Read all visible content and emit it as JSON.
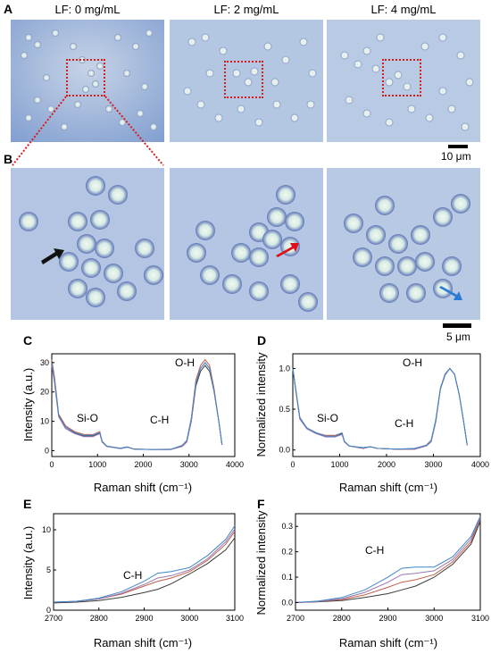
{
  "panels": {
    "A": "A",
    "B": "B",
    "C": "C",
    "D": "D",
    "E": "E",
    "F": "F"
  },
  "conditions": [
    "LF: 0 mg/mL",
    "LF: 2 mg/mL",
    "LF: 4 mg/mL"
  ],
  "scalebars": {
    "a": "10 μm",
    "b": "5 μm"
  },
  "arrow_colors": {
    "cond0": "#111111",
    "cond1": "#e0101a",
    "cond2": "#2a7bd1"
  },
  "series_colors": [
    "#3a3a3a",
    "#c0604a",
    "#9a77b0",
    "#3f86c8"
  ],
  "chart_data": [
    {
      "id": "C",
      "type": "line",
      "xlabel": "Raman shift (cm⁻¹)",
      "ylabel": "Intensity (a.u.)",
      "xlim": [
        0,
        4000
      ],
      "ylim": [
        -2,
        33
      ],
      "xticks": [
        0,
        1000,
        2000,
        3000,
        4000
      ],
      "yticks": [
        0,
        10,
        20,
        30
      ],
      "annotations": [
        "Si-O",
        "C-H",
        "O-H"
      ],
      "series": [
        {
          "x": [
            0,
            60,
            150,
            300,
            500,
            700,
            900,
            1050,
            1100,
            1200,
            1500,
            1650,
            1800,
            2200,
            2600,
            2850,
            2950,
            3050,
            3150,
            3250,
            3350,
            3450,
            3550,
            3650,
            3720
          ],
          "y": [
            30,
            24,
            12,
            8,
            6,
            5,
            5,
            6,
            3,
            1.5,
            0.7,
            1.2,
            0.5,
            0.4,
            0.4,
            1.5,
            3,
            10,
            22,
            27,
            29,
            27,
            20,
            10,
            2
          ]
        },
        {
          "x": [
            0,
            60,
            150,
            300,
            500,
            700,
            900,
            1050,
            1100,
            1200,
            1500,
            1650,
            1800,
            2200,
            2600,
            2850,
            2950,
            3050,
            3150,
            3250,
            3350,
            3450,
            3550,
            3650,
            3720
          ],
          "y": [
            31,
            25,
            12.5,
            8.5,
            6.5,
            5.5,
            5.5,
            6.5,
            3.2,
            1.6,
            0.8,
            1.3,
            0.5,
            0.4,
            0.4,
            1.6,
            3.2,
            11,
            24,
            29,
            31,
            29,
            21,
            10,
            2
          ]
        },
        {
          "x": [
            0,
            60,
            150,
            300,
            500,
            700,
            900,
            1050,
            1100,
            1200,
            1500,
            1650,
            1800,
            2200,
            2600,
            2850,
            2950,
            3050,
            3150,
            3250,
            3350,
            3450,
            3550,
            3650,
            3720
          ],
          "y": [
            29,
            23,
            11.5,
            7.5,
            5.8,
            4.8,
            4.8,
            5.8,
            2.9,
            1.4,
            0.7,
            1.2,
            0.5,
            0.4,
            0.4,
            1.4,
            2.9,
            10,
            23,
            28,
            30,
            28,
            20,
            10,
            2
          ]
        },
        {
          "x": [
            0,
            60,
            150,
            300,
            500,
            700,
            900,
            1050,
            1100,
            1200,
            1500,
            1650,
            1800,
            2200,
            2600,
            2850,
            2950,
            3050,
            3150,
            3250,
            3350,
            3450,
            3550,
            3650,
            3720
          ],
          "y": [
            30,
            24,
            12,
            8,
            6.2,
            5.2,
            5.2,
            6.2,
            3.1,
            1.5,
            0.8,
            1.3,
            0.5,
            0.4,
            0.5,
            1.8,
            3.5,
            11,
            23,
            28,
            30,
            28,
            20,
            10,
            2
          ]
        }
      ]
    },
    {
      "id": "D",
      "type": "line",
      "xlabel": "Raman shift (cm⁻¹)",
      "ylabel": "Normalized intensity",
      "xlim": [
        0,
        4000
      ],
      "ylim": [
        -0.08,
        1.18
      ],
      "xticks": [
        0,
        1000,
        2000,
        3000,
        4000
      ],
      "yticks": [
        0.0,
        0.5,
        1.0
      ],
      "annotations": [
        "Si-O",
        "C-H",
        "O-H"
      ],
      "series": [
        {
          "x": [
            0,
            60,
            150,
            300,
            500,
            700,
            900,
            1050,
            1100,
            1200,
            1500,
            1650,
            1800,
            2200,
            2600,
            2850,
            2950,
            3050,
            3150,
            3250,
            3350,
            3450,
            3550,
            3650,
            3720
          ],
          "y": [
            1.0,
            0.75,
            0.38,
            0.26,
            0.2,
            0.17,
            0.17,
            0.2,
            0.1,
            0.05,
            0.02,
            0.04,
            0.02,
            0.01,
            0.01,
            0.05,
            0.1,
            0.35,
            0.75,
            0.92,
            1.0,
            0.93,
            0.68,
            0.33,
            0.06
          ]
        },
        {
          "x": [
            0,
            60,
            150,
            300,
            500,
            700,
            900,
            1050,
            1100,
            1200,
            1500,
            1650,
            1800,
            2200,
            2600,
            2850,
            2950,
            3050,
            3150,
            3250,
            3350,
            3450,
            3550,
            3650,
            3720
          ],
          "y": [
            1.0,
            0.76,
            0.39,
            0.27,
            0.21,
            0.18,
            0.18,
            0.21,
            0.1,
            0.05,
            0.02,
            0.04,
            0.02,
            0.01,
            0.01,
            0.05,
            0.1,
            0.36,
            0.76,
            0.93,
            1.0,
            0.93,
            0.68,
            0.33,
            0.06
          ]
        },
        {
          "x": [
            0,
            60,
            150,
            300,
            500,
            700,
            900,
            1050,
            1100,
            1200,
            1500,
            1650,
            1800,
            2200,
            2600,
            2850,
            2950,
            3050,
            3150,
            3250,
            3350,
            3450,
            3550,
            3650,
            3720
          ],
          "y": [
            1.0,
            0.74,
            0.38,
            0.26,
            0.2,
            0.16,
            0.16,
            0.19,
            0.1,
            0.05,
            0.02,
            0.04,
            0.02,
            0.01,
            0.01,
            0.05,
            0.1,
            0.34,
            0.76,
            0.93,
            1.0,
            0.93,
            0.68,
            0.33,
            0.06
          ]
        },
        {
          "x": [
            0,
            60,
            150,
            300,
            500,
            700,
            900,
            1050,
            1100,
            1200,
            1500,
            1650,
            1800,
            2200,
            2600,
            2850,
            2950,
            3050,
            3150,
            3250,
            3350,
            3450,
            3550,
            3650,
            3720
          ],
          "y": [
            1.0,
            0.76,
            0.4,
            0.27,
            0.21,
            0.17,
            0.17,
            0.21,
            0.11,
            0.05,
            0.03,
            0.04,
            0.02,
            0.01,
            0.02,
            0.06,
            0.12,
            0.37,
            0.76,
            0.93,
            1.0,
            0.93,
            0.68,
            0.33,
            0.06
          ]
        }
      ]
    },
    {
      "id": "E",
      "type": "line",
      "xlabel": "Raman shift (cm⁻¹)",
      "ylabel": "Intensity (a.u.)",
      "xlim": [
        2700,
        3100
      ],
      "ylim": [
        0,
        12
      ],
      "xticks": [
        2700,
        2800,
        2900,
        3000,
        3100
      ],
      "yticks": [
        0,
        5,
        10
      ],
      "annotations": [
        "C-H"
      ],
      "series": [
        {
          "x": [
            2700,
            2750,
            2800,
            2850,
            2900,
            2930,
            2960,
            3000,
            3040,
            3080,
            3100
          ],
          "y": [
            0.9,
            1.0,
            1.2,
            1.6,
            2.2,
            2.6,
            3.3,
            4.5,
            5.8,
            7.5,
            9.0
          ]
        },
        {
          "x": [
            2700,
            2750,
            2800,
            2850,
            2900,
            2930,
            2960,
            3000,
            3040,
            3080,
            3100
          ],
          "y": [
            1.0,
            1.1,
            1.4,
            2.0,
            3.0,
            3.6,
            4.0,
            4.8,
            6.2,
            8.2,
            9.8
          ]
        },
        {
          "x": [
            2700,
            2750,
            2800,
            2850,
            2900,
            2930,
            2960,
            3000,
            3040,
            3080,
            3100
          ],
          "y": [
            1.0,
            1.1,
            1.4,
            2.1,
            3.2,
            4.0,
            4.3,
            5.0,
            6.4,
            8.5,
            10.1
          ]
        },
        {
          "x": [
            2700,
            2750,
            2800,
            2850,
            2900,
            2930,
            2960,
            3000,
            3040,
            3080,
            3100
          ],
          "y": [
            1.0,
            1.1,
            1.5,
            2.3,
            3.6,
            4.6,
            4.8,
            5.3,
            6.8,
            8.8,
            10.5
          ]
        }
      ]
    },
    {
      "id": "F",
      "type": "line",
      "xlabel": "Raman shift (cm⁻¹)",
      "ylabel": "Normalized intensity",
      "xlim": [
        2700,
        3100
      ],
      "ylim": [
        -0.03,
        0.35
      ],
      "xticks": [
        2700,
        2800,
        2900,
        3000,
        3100
      ],
      "yticks": [
        0.0,
        0.1,
        0.2,
        0.3
      ],
      "annotations": [
        "C-H"
      ],
      "series": [
        {
          "x": [
            2700,
            2750,
            2800,
            2850,
            2900,
            2930,
            2960,
            3000,
            3040,
            3080,
            3100
          ],
          "y": [
            0.0,
            0.003,
            0.008,
            0.02,
            0.035,
            0.05,
            0.065,
            0.1,
            0.15,
            0.23,
            0.32
          ]
        },
        {
          "x": [
            2700,
            2750,
            2800,
            2850,
            2900,
            2930,
            2960,
            3000,
            3040,
            3080,
            3100
          ],
          "y": [
            0.0,
            0.004,
            0.012,
            0.03,
            0.06,
            0.08,
            0.09,
            0.11,
            0.16,
            0.24,
            0.33
          ]
        },
        {
          "x": [
            2700,
            2750,
            2800,
            2850,
            2900,
            2930,
            2960,
            3000,
            3040,
            3080,
            3100
          ],
          "y": [
            0.0,
            0.005,
            0.015,
            0.04,
            0.08,
            0.11,
            0.115,
            0.125,
            0.17,
            0.25,
            0.335
          ]
        },
        {
          "x": [
            2700,
            2750,
            2800,
            2850,
            2900,
            2930,
            2960,
            3000,
            3040,
            3080,
            3100
          ],
          "y": [
            0.0,
            0.006,
            0.02,
            0.05,
            0.1,
            0.135,
            0.14,
            0.14,
            0.18,
            0.26,
            0.34
          ]
        }
      ]
    }
  ]
}
